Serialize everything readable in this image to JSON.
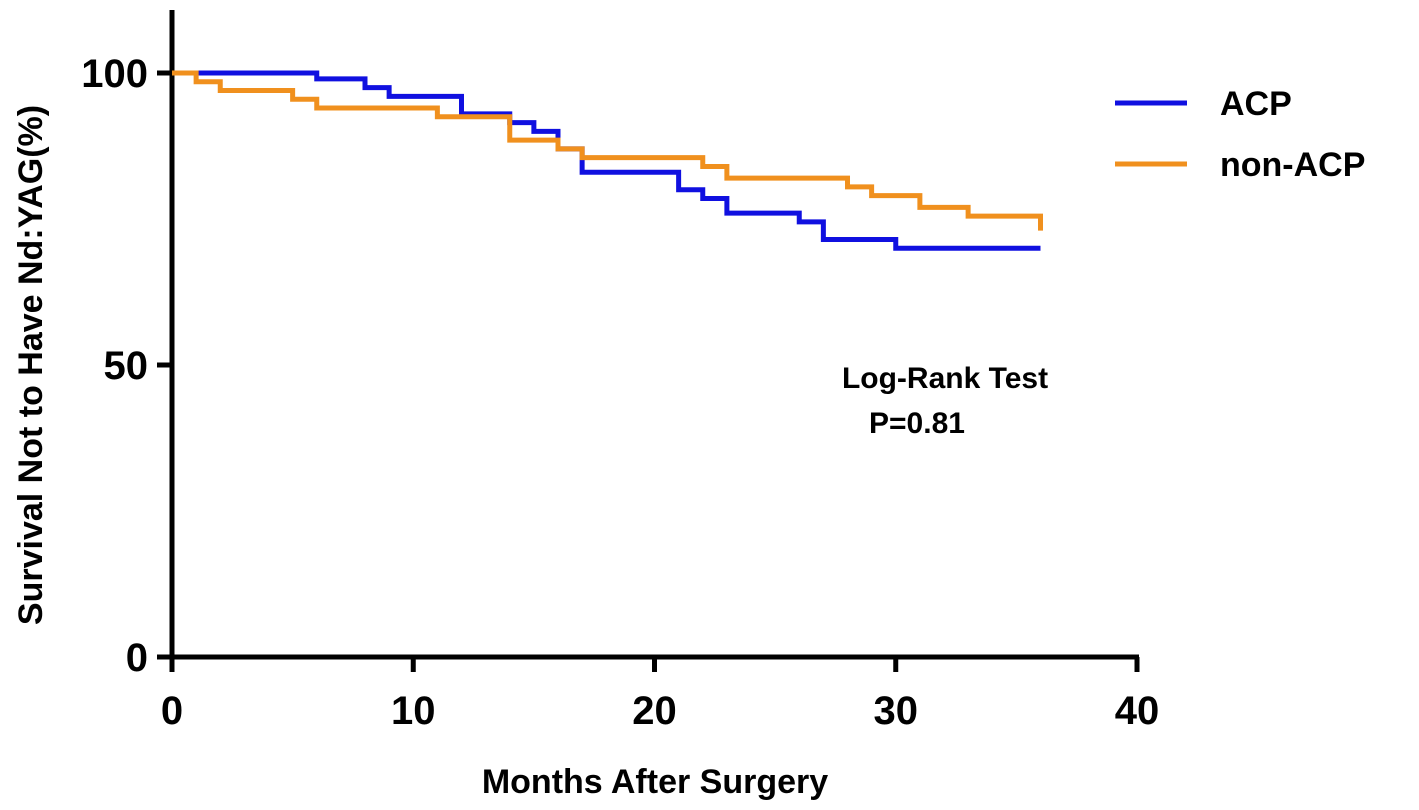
{
  "chart_data": {
    "type": "line",
    "xlabel": "Months After Surgery",
    "ylabel": "Survival Not to Have Nd:YAG(%)",
    "xlim": [
      0,
      40
    ],
    "ylim": [
      0,
      100
    ],
    "xticks": [
      "0",
      "10",
      "20",
      "30",
      "40"
    ],
    "yticks": [
      "0",
      "50",
      "100"
    ],
    "grid": false,
    "legend_position": "top-right",
    "annotations": [
      "Log-Rank Test",
      "P=0.81"
    ],
    "series": [
      {
        "name": "ACP",
        "color": "#1010e0",
        "step": true,
        "points": [
          [
            0,
            100
          ],
          [
            6,
            99
          ],
          [
            8,
            97.5
          ],
          [
            9,
            96
          ],
          [
            12,
            93
          ],
          [
            14,
            91.5
          ],
          [
            15,
            90
          ],
          [
            16,
            87
          ],
          [
            17,
            83
          ],
          [
            21,
            80
          ],
          [
            22,
            78.5
          ],
          [
            23,
            76
          ],
          [
            26,
            74.5
          ],
          [
            27,
            71.5
          ],
          [
            30,
            70
          ],
          [
            36,
            70
          ]
        ]
      },
      {
        "name": "non-ACP",
        "color": "#f0901e",
        "step": true,
        "points": [
          [
            0,
            100
          ],
          [
            1,
            98.5
          ],
          [
            2,
            97
          ],
          [
            5,
            95.5
          ],
          [
            6,
            94
          ],
          [
            11,
            92.5
          ],
          [
            14,
            88.5
          ],
          [
            16,
            87
          ],
          [
            17,
            85.5
          ],
          [
            22,
            84
          ],
          [
            23,
            82
          ],
          [
            28,
            80.5
          ],
          [
            29,
            79
          ],
          [
            31,
            77
          ],
          [
            33,
            75.5
          ],
          [
            36,
            73
          ]
        ]
      }
    ]
  }
}
